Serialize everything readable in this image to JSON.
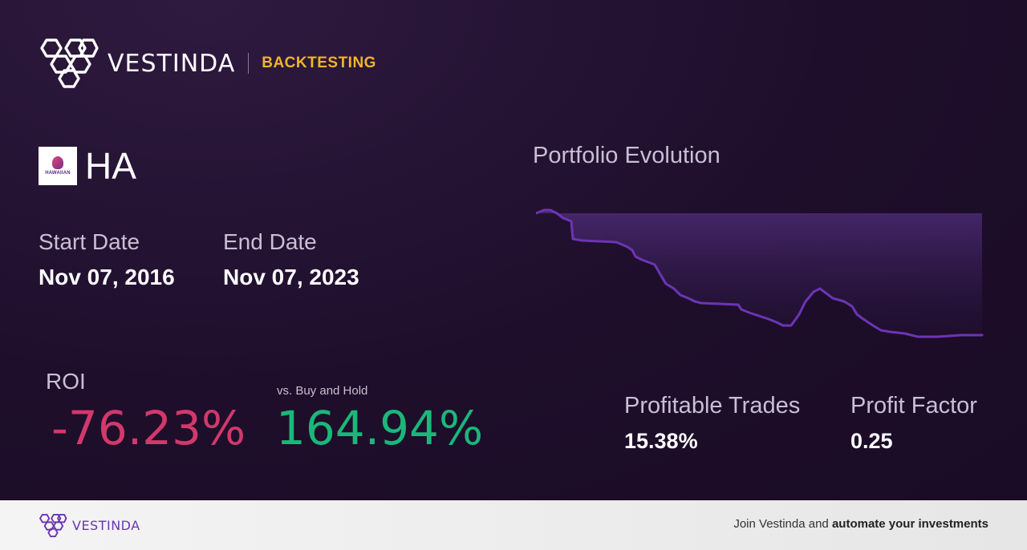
{
  "header": {
    "brand_name": "VESTINDA",
    "section_label": "BACKTESTING"
  },
  "ticker": {
    "symbol": "HA",
    "logo_text": "HAWAIIAN"
  },
  "dates": {
    "start_label": "Start Date",
    "start_value": "Nov 07, 2016",
    "end_label": "End Date",
    "end_value": "Nov 07, 2023"
  },
  "roi": {
    "label": "ROI",
    "value": "-76.23%",
    "vs_label": "vs. Buy and Hold",
    "vs_value": "164.94%"
  },
  "chart": {
    "title": "Portfolio Evolution"
  },
  "metrics": {
    "profitable_trades_label": "Profitable Trades",
    "profitable_trades_value": "15.38%",
    "profit_factor_label": "Profit Factor",
    "profit_factor_value": "0.25"
  },
  "footer": {
    "brand_name": "VESTINDA",
    "cta_prefix": "Join Vestinda and",
    "cta_bold": "automate your investments"
  },
  "colors": {
    "accent_yellow": "#f0b429",
    "negative": "#d1396a",
    "positive": "#19b87a",
    "chart_line": "#6c35b5",
    "brand_purple": "#6a35b0"
  }
}
